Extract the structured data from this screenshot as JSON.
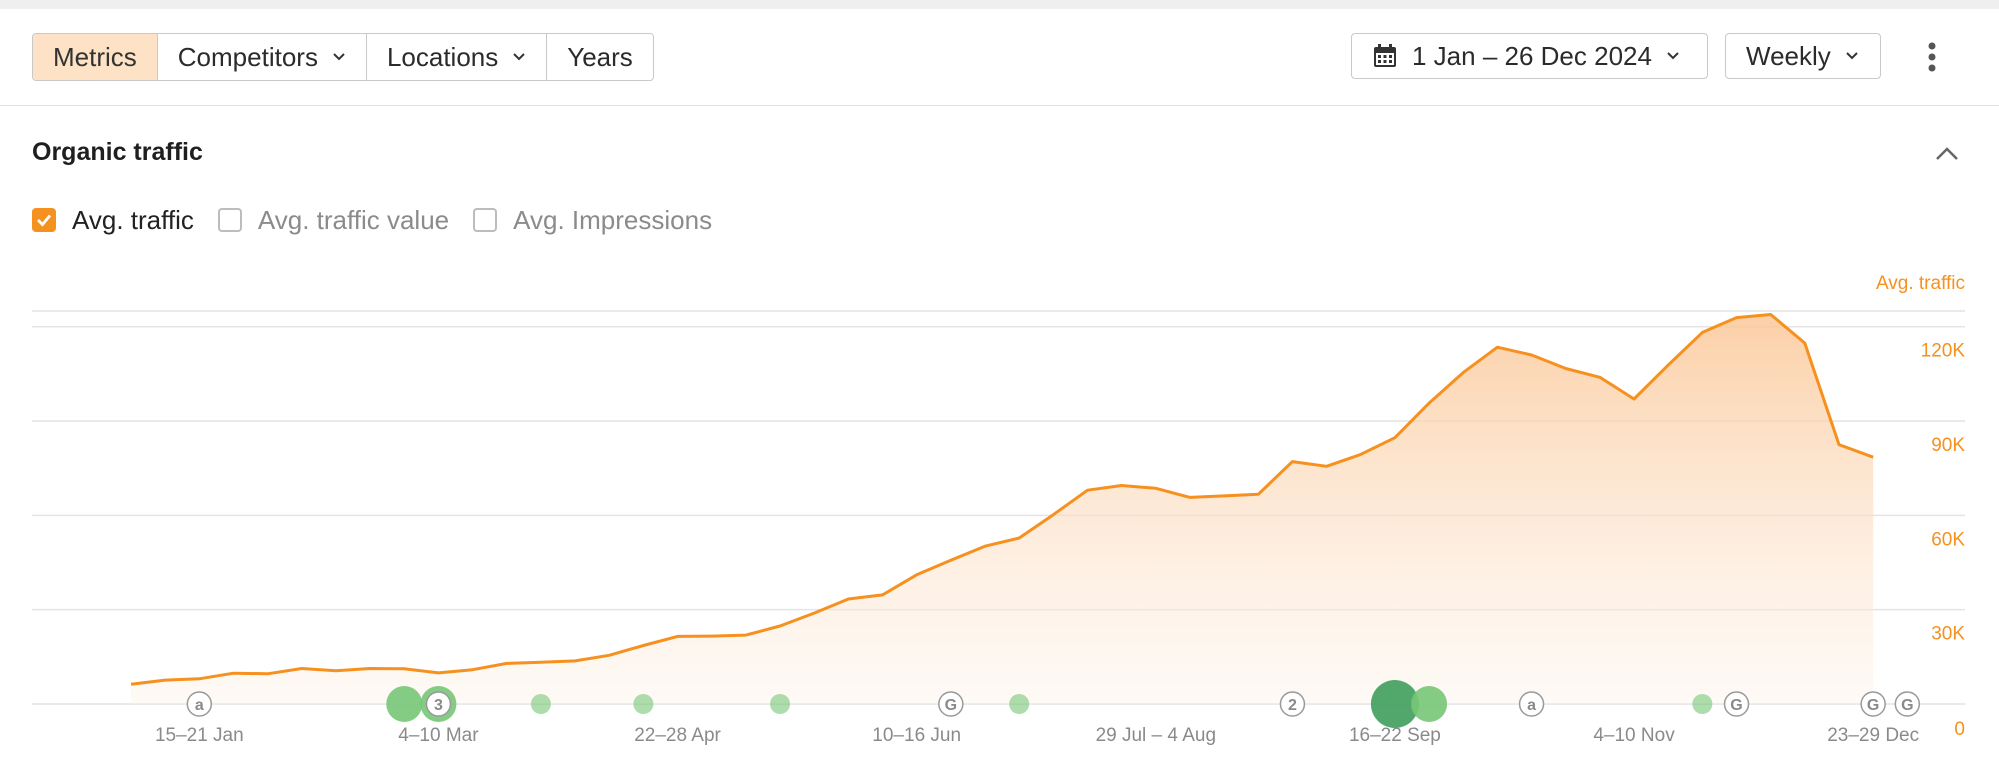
{
  "toolbar": {
    "tabs": [
      {
        "label": "Metrics",
        "active": true,
        "has_dropdown": false
      },
      {
        "label": "Competitors",
        "active": false,
        "has_dropdown": true
      },
      {
        "label": "Locations",
        "active": false,
        "has_dropdown": true
      },
      {
        "label": "Years",
        "active": false,
        "has_dropdown": false
      }
    ],
    "date_range": "1 Jan – 26 Dec 2024",
    "date_icon": "calendar-icon",
    "interval": "Weekly",
    "more_icon": "more-vertical-icon"
  },
  "section": {
    "title": "Organic traffic",
    "collapse_icon": "chevron-up-icon"
  },
  "metrics": [
    {
      "label": "Avg. traffic",
      "checked": true
    },
    {
      "label": "Avg. traffic value",
      "checked": false
    },
    {
      "label": "Avg. Impressions",
      "checked": false
    }
  ],
  "colors": {
    "accent": "#f5911e",
    "series_line": "#f6901e",
    "axis_text": "#f5911e",
    "marker_green": "#77c777",
    "marker_green_dark": "#3f9e5c",
    "active_tab": "#fde2c5"
  },
  "chart_data": {
    "type": "area",
    "axis_title": "Avg. traffic",
    "ylim": [
      0,
      120000
    ],
    "yticks": [
      0,
      30000,
      60000,
      90000,
      120000
    ],
    "ytick_labels": [
      "0",
      "30K",
      "60K",
      "90K",
      "120K"
    ],
    "grid": true,
    "xtick_labels": [
      "15–21 Jan",
      "4–10 Mar",
      "22–28 Apr",
      "10–16 Jun",
      "29 Jul – 4 Aug",
      "16–22 Sep",
      "4–10 Nov",
      "23–29 Dec"
    ],
    "xtick_week_index": [
      2,
      9,
      16,
      23,
      30,
      37,
      44,
      51
    ],
    "series": [
      {
        "values": [
          6300,
          7600,
          8000,
          9800,
          9600,
          11300,
          10600,
          11300,
          11200,
          9900,
          10900,
          12900,
          13300,
          13700,
          15500,
          18600,
          21500,
          21600,
          21900,
          24800,
          28900,
          33400,
          34700,
          41100,
          45700,
          50200,
          52800,
          60200,
          68000,
          69500,
          68600,
          65700,
          66200,
          66700,
          77100,
          75600,
          79400,
          84700,
          95700,
          105400,
          113500,
          111000,
          106700,
          103900,
          97000,
          107800,
          118200,
          122900,
          123900,
          114800,
          82500,
          78500
        ]
      }
    ],
    "annotations": [
      {
        "week": 2,
        "kind": "icon",
        "label": "a"
      },
      {
        "week": 8,
        "kind": "dot",
        "size": "medium"
      },
      {
        "week": 9,
        "kind": "dot",
        "size": "medium"
      },
      {
        "week": 9,
        "kind": "icon",
        "label": "3"
      },
      {
        "week": 12,
        "kind": "dot",
        "size": "small"
      },
      {
        "week": 15,
        "kind": "dot",
        "size": "small"
      },
      {
        "week": 19,
        "kind": "dot",
        "size": "small"
      },
      {
        "week": 24,
        "kind": "icon",
        "label": "G"
      },
      {
        "week": 26,
        "kind": "dot",
        "size": "small"
      },
      {
        "week": 34,
        "kind": "icon",
        "label": "2"
      },
      {
        "week": 37,
        "kind": "dot",
        "size": "large"
      },
      {
        "week": 38,
        "kind": "dot",
        "size": "medium"
      },
      {
        "week": 41,
        "kind": "icon",
        "label": "a"
      },
      {
        "week": 46,
        "kind": "dot",
        "size": "small"
      },
      {
        "week": 47,
        "kind": "icon",
        "label": "G"
      },
      {
        "week": 51,
        "kind": "icon",
        "label": "G"
      },
      {
        "week": 52,
        "kind": "icon",
        "label": "G"
      }
    ]
  }
}
